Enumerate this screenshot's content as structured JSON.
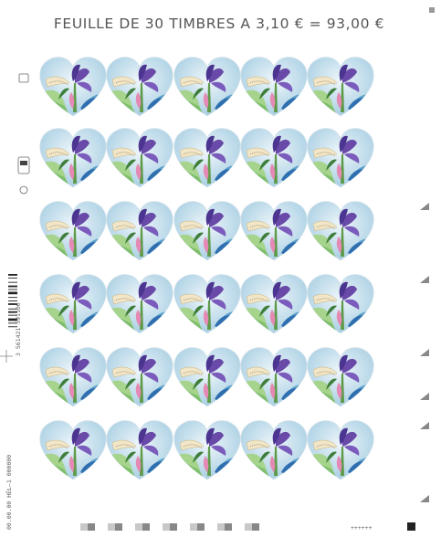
{
  "header": {
    "title": "FEUILLE DE 30 TIMBRES A 3,10 € = 93,00 €"
  },
  "margin": {
    "barcode_number": "3 561421 591100",
    "print_code": "00.00.00 HÉL—1 000000",
    "register_marks": "++++++"
  }
}
